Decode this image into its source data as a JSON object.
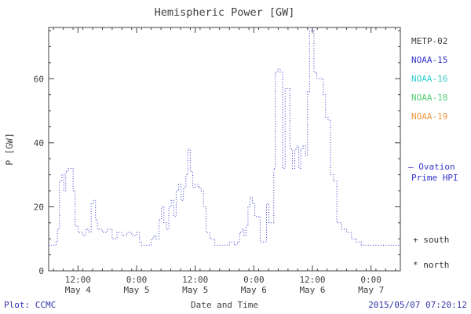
{
  "title": "Hemispheric Power [GW]",
  "axis_color": "#404040",
  "legend": {
    "satellites": [
      {
        "label": "METP-02",
        "color": "#404040"
      },
      {
        "label": "NOAA-15",
        "color": "#3333cc"
      },
      {
        "label": "NOAA-16",
        "color": "#33cccc"
      },
      {
        "label": "NOAA-18",
        "color": "#55cc77"
      },
      {
        "label": "NOAA-19",
        "color": "#ee9944"
      }
    ],
    "model_line1": "– Ovation",
    "model_line2": "Prime HPI",
    "model_color": "#3333cc",
    "south": "+ south",
    "north": "* north"
  },
  "footer": {
    "left": "Plot: CCMC",
    "center": "Date and Time",
    "right": "2015/05/07 07:20:12"
  },
  "chart_data": {
    "type": "line",
    "title": "Hemispheric Power [GW]",
    "xlabel": "Date and Time",
    "ylabel": "P [GW]",
    "x_unit": "hours since 2015-05-04 00:00",
    "xlim": [
      6,
      78
    ],
    "ylim": [
      0,
      76
    ],
    "y_ticks": [
      0,
      20,
      40,
      60
    ],
    "y_minor_step": 5,
    "x_minor_step": 2,
    "grid": false,
    "legend_position": "right-outside",
    "x_ticks": [
      {
        "t": 12,
        "time": "12:00",
        "date": "May 4"
      },
      {
        "t": 24,
        "time": "0:00",
        "date": "May 5"
      },
      {
        "t": 36,
        "time": "12:00",
        "date": "May 5"
      },
      {
        "t": 48,
        "time": "0:00",
        "date": "May 6"
      },
      {
        "t": 60,
        "time": "12:00",
        "date": "May 6"
      },
      {
        "t": 72,
        "time": "0:00",
        "date": "May 7"
      }
    ],
    "series": [
      {
        "name": "Ovation Prime HPI",
        "color": "#3333cc",
        "style": "dotted-step",
        "points": [
          [
            6,
            8
          ],
          [
            7,
            8
          ],
          [
            7.5,
            9
          ],
          [
            7.8,
            13
          ],
          [
            8.2,
            28
          ],
          [
            8.7,
            30
          ],
          [
            9.1,
            25
          ],
          [
            9.5,
            31
          ],
          [
            10,
            32
          ],
          [
            10.6,
            32
          ],
          [
            11,
            25
          ],
          [
            11.4,
            14
          ],
          [
            12,
            12
          ],
          [
            13,
            11
          ],
          [
            13.6,
            13
          ],
          [
            14.2,
            12
          ],
          [
            14.7,
            21
          ],
          [
            15.1,
            22
          ],
          [
            15.6,
            16
          ],
          [
            16,
            13
          ],
          [
            17,
            12
          ],
          [
            18,
            13
          ],
          [
            19,
            10
          ],
          [
            20,
            12
          ],
          [
            21,
            11
          ],
          [
            22,
            12
          ],
          [
            23,
            11
          ],
          [
            24,
            12
          ],
          [
            24.6,
            9
          ],
          [
            25,
            8
          ],
          [
            26,
            8
          ],
          [
            27,
            10
          ],
          [
            27.5,
            11
          ],
          [
            28,
            10
          ],
          [
            28.6,
            16
          ],
          [
            29.1,
            20
          ],
          [
            29.6,
            15
          ],
          [
            30.1,
            13
          ],
          [
            30.6,
            20
          ],
          [
            31.1,
            22
          ],
          [
            31.6,
            17
          ],
          [
            32.1,
            25
          ],
          [
            32.6,
            27
          ],
          [
            33.1,
            22
          ],
          [
            33.6,
            26
          ],
          [
            34.1,
            30
          ],
          [
            34.5,
            38
          ],
          [
            35,
            31
          ],
          [
            35.5,
            26
          ],
          [
            36,
            27
          ],
          [
            36.6,
            26
          ],
          [
            37.2,
            25
          ],
          [
            37.7,
            20
          ],
          [
            38.2,
            12
          ],
          [
            39,
            10
          ],
          [
            40,
            8
          ],
          [
            41,
            8
          ],
          [
            42,
            8
          ],
          [
            43,
            9
          ],
          [
            44,
            8
          ],
          [
            44.6,
            9
          ],
          [
            45.1,
            12
          ],
          [
            45.6,
            13
          ],
          [
            46,
            11
          ],
          [
            46.4,
            14
          ],
          [
            46.8,
            20
          ],
          [
            47.2,
            23
          ],
          [
            47.7,
            21
          ],
          [
            48.2,
            17
          ],
          [
            48.8,
            17
          ],
          [
            49.3,
            9
          ],
          [
            50,
            9
          ],
          [
            50.6,
            21
          ],
          [
            51.1,
            15
          ],
          [
            51.7,
            15
          ],
          [
            52.1,
            32
          ],
          [
            52.4,
            62
          ],
          [
            52.9,
            63
          ],
          [
            53.4,
            62
          ],
          [
            53.9,
            32
          ],
          [
            54.4,
            57
          ],
          [
            54.9,
            57
          ],
          [
            55.4,
            38
          ],
          [
            55.9,
            32
          ],
          [
            56.4,
            38
          ],
          [
            56.8,
            39
          ],
          [
            57.2,
            32
          ],
          [
            57.6,
            38
          ],
          [
            58.1,
            39
          ],
          [
            58.6,
            36
          ],
          [
            59,
            56
          ],
          [
            59.4,
            75
          ],
          [
            59.9,
            75
          ],
          [
            60.3,
            62
          ],
          [
            60.9,
            60
          ],
          [
            61.6,
            60
          ],
          [
            62.2,
            55
          ],
          [
            62.7,
            48
          ],
          [
            63.2,
            47
          ],
          [
            63.7,
            30
          ],
          [
            64.3,
            28
          ],
          [
            65,
            15
          ],
          [
            66,
            13
          ],
          [
            67,
            12
          ],
          [
            68,
            10
          ],
          [
            69,
            9
          ],
          [
            70,
            8
          ],
          [
            72,
            8
          ],
          [
            75,
            8
          ],
          [
            78,
            8
          ]
        ]
      }
    ]
  }
}
